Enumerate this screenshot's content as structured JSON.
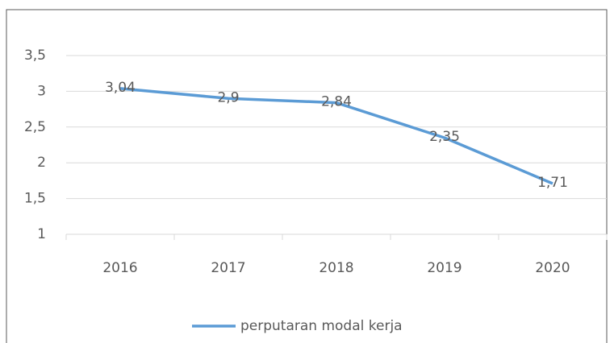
{
  "chart_data": {
    "type": "line",
    "categories": [
      "2016",
      "2017",
      "2018",
      "2019",
      "2020"
    ],
    "series": [
      {
        "name": "perputaran modal kerja",
        "color": "#5b9bd5",
        "values": [
          3.04,
          2.9,
          2.84,
          2.35,
          1.71
        ],
        "value_labels": [
          "3,04",
          "2,9",
          "2,84",
          "2,35",
          "1,71"
        ]
      }
    ],
    "ylim": [
      1,
      3.5
    ],
    "yticks": [
      1,
      {
        "value": 1.5,
        "label": "1,5"
      },
      2,
      {
        "value": 2.5,
        "label": "2,5"
      },
      3,
      {
        "value": 3.5,
        "label": "3,5"
      }
    ],
    "grid": true,
    "legend": "bottom"
  }
}
